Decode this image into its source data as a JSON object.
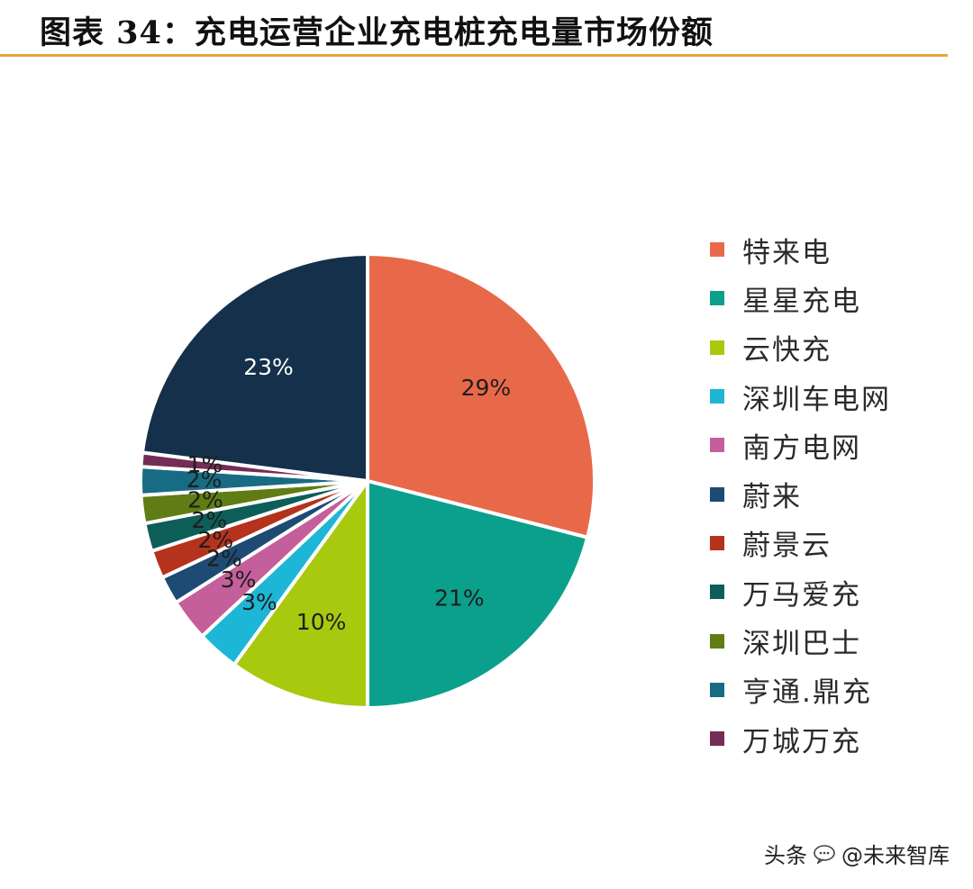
{
  "title": "图表 34：充电运营企业充电桩充电量市场份额",
  "watermark": {
    "source": "头条",
    "handle": "@未来智库"
  },
  "chart_data": {
    "type": "pie",
    "title": "图表 34：充电运营企业充电桩充电量市场份额",
    "unit": "%",
    "slices": [
      {
        "name": "特来电",
        "value": 29,
        "label": "29%",
        "color": "#e8694a"
      },
      {
        "name": "星星充电",
        "value": 21,
        "label": "21%",
        "color": "#0aa08c"
      },
      {
        "name": "云快充",
        "value": 10,
        "label": "10%",
        "color": "#a9c90f"
      },
      {
        "name": "深圳车电网",
        "value": 3,
        "label": "3%",
        "color": "#1eb6d6"
      },
      {
        "name": "南方电网",
        "value": 3,
        "label": "3%",
        "color": "#c45f9c"
      },
      {
        "name": "蔚来",
        "value": 2,
        "label": "2%",
        "color": "#1e4b73"
      },
      {
        "name": "蔚景云",
        "value": 2,
        "label": "2%",
        "color": "#b5321c"
      },
      {
        "name": "万马爱充",
        "value": 2,
        "label": "2%",
        "color": "#0d5e58"
      },
      {
        "name": "深圳巴士",
        "value": 2,
        "label": "2%",
        "color": "#5f7d14"
      },
      {
        "name": "亨通.鼎充",
        "value": 2,
        "label": "2%",
        "color": "#176c84"
      },
      {
        "name": "万城万充",
        "value": 1,
        "label": "1%",
        "color": "#742d55"
      },
      {
        "name": "",
        "value": 23,
        "label": "23%",
        "color": "#14304a"
      }
    ],
    "legend": {
      "position": "right",
      "entries": [
        "特来电",
        "星星充电",
        "云快充",
        "深圳车电网",
        "南方电网",
        "蔚来",
        "蔚景云",
        "万马爱充",
        "深圳巴士",
        "亨通.鼎充",
        "万城万充"
      ]
    }
  }
}
